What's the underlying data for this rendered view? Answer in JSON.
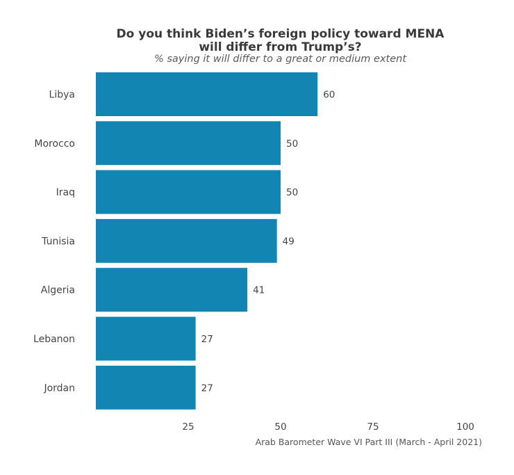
{
  "chart_data": {
    "type": "bar",
    "orientation": "horizontal",
    "title": "Do you think Biden’s foreign policy toward MENA will differ from Trump’s?",
    "title_lines": [
      "Do you think Biden’s foreign policy toward MENA",
      "will differ from Trump’s?"
    ],
    "subtitle": "% saying it will differ to a great or medium extent",
    "categories": [
      "Libya",
      "Morocco",
      "Iraq",
      "Tunisia",
      "Algeria",
      "Lebanon",
      "Jordan"
    ],
    "values": [
      60,
      50,
      50,
      49,
      41,
      27,
      27
    ],
    "xlim": [
      0,
      100
    ],
    "xticks": [
      25,
      50,
      75,
      100
    ],
    "grid": false,
    "bar_color": "#1385b3",
    "caption": "Arab Barometer Wave VI Part III (March - April 2021)"
  }
}
